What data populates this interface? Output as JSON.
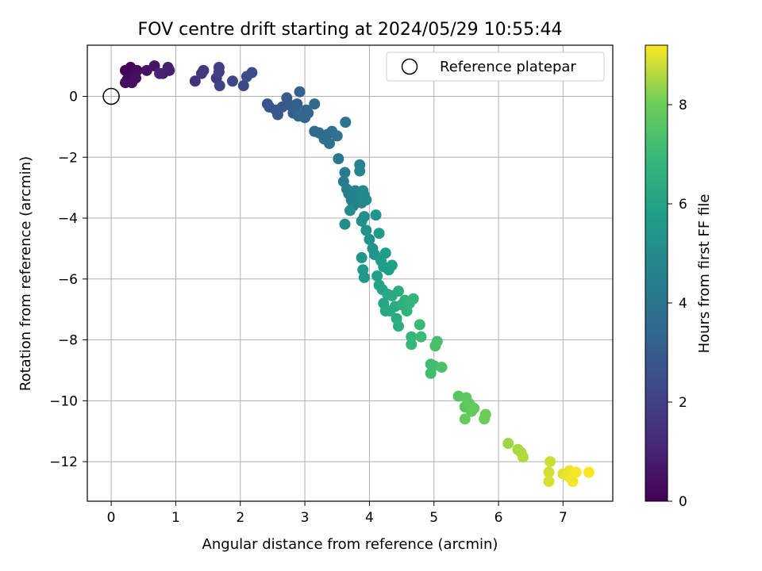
{
  "chart_data": {
    "type": "scatter",
    "title": "FOV centre drift starting at 2024/05/29 10:55:44",
    "xlabel": "Angular distance from reference (arcmin)",
    "ylabel": "Rotation from reference (arcmin)",
    "xlim": [
      -0.37,
      7.77
    ],
    "ylim": [
      -13.3,
      1.68
    ],
    "xticks": [
      0,
      1,
      2,
      3,
      4,
      5,
      6,
      7
    ],
    "yticks": [
      0,
      -2,
      -4,
      -6,
      -8,
      -10,
      -12
    ],
    "grid": true,
    "legend": {
      "position": "top-right",
      "entries": [
        "Reference platepar"
      ]
    },
    "reference_point": {
      "x": 0,
      "y": 0
    },
    "colorbar": {
      "label": "Hours from first FF file",
      "min": 0,
      "max": 9.2,
      "ticks": [
        0,
        2,
        4,
        6,
        8
      ],
      "colormap": "viridis"
    },
    "points": [
      [
        0.22,
        0.85,
        0.1
      ],
      [
        0.3,
        0.95,
        0.15
      ],
      [
        0.35,
        0.75,
        0.2
      ],
      [
        0.25,
        0.55,
        0.25
      ],
      [
        0.4,
        0.85,
        0.3
      ],
      [
        0.32,
        0.45,
        0.35
      ],
      [
        0.22,
        0.45,
        0.4
      ],
      [
        0.38,
        0.6,
        0.45
      ],
      [
        0.55,
        0.85,
        0.5
      ],
      [
        0.67,
        1.0,
        0.6
      ],
      [
        0.8,
        0.75,
        0.7
      ],
      [
        0.9,
        0.85,
        0.8
      ],
      [
        0.88,
        0.95,
        0.9
      ],
      [
        0.75,
        0.75,
        1.0
      ],
      [
        1.3,
        0.5,
        1.5
      ],
      [
        1.4,
        0.75,
        1.6
      ],
      [
        1.43,
        0.85,
        1.7
      ],
      [
        1.63,
        0.6,
        1.8
      ],
      [
        1.67,
        0.95,
        1.9
      ],
      [
        1.67,
        0.8,
        2.0
      ],
      [
        1.68,
        0.35,
        2.1
      ],
      [
        1.88,
        0.5,
        2.2
      ],
      [
        2.05,
        0.35,
        2.3
      ],
      [
        2.1,
        0.65,
        2.4
      ],
      [
        2.18,
        0.78,
        2.5
      ],
      [
        2.42,
        -0.25,
        2.7
      ],
      [
        2.45,
        -0.35,
        2.75
      ],
      [
        2.55,
        -0.45,
        2.8
      ],
      [
        2.58,
        -0.6,
        2.85
      ],
      [
        2.65,
        -0.35,
        2.9
      ],
      [
        2.72,
        -0.05,
        2.95
      ],
      [
        2.78,
        -0.3,
        3.0
      ],
      [
        2.82,
        -0.55,
        3.05
      ],
      [
        2.85,
        -0.4,
        3.1
      ],
      [
        2.88,
        -0.25,
        3.15
      ],
      [
        2.92,
        0.15,
        3.2
      ],
      [
        2.95,
        -0.65,
        3.25
      ],
      [
        3.0,
        -0.7,
        3.3
      ],
      [
        3.02,
        -0.45,
        3.35
      ],
      [
        3.05,
        -0.55,
        3.4
      ],
      [
        3.15,
        -0.25,
        3.45
      ],
      [
        2.9,
        -0.65,
        3.5
      ],
      [
        3.15,
        -1.15,
        3.6
      ],
      [
        3.22,
        -1.2,
        3.65
      ],
      [
        3.3,
        -1.4,
        3.7
      ],
      [
        3.35,
        -1.25,
        3.75
      ],
      [
        3.38,
        -1.55,
        3.8
      ],
      [
        3.42,
        -1.15,
        3.85
      ],
      [
        3.5,
        -1.3,
        3.9
      ],
      [
        3.63,
        -0.85,
        3.95
      ],
      [
        3.52,
        -2.05,
        4.1
      ],
      [
        3.6,
        -2.8,
        4.3
      ],
      [
        3.62,
        -2.5,
        4.35
      ],
      [
        3.65,
        -3.05,
        4.4
      ],
      [
        3.68,
        -3.2,
        4.45
      ],
      [
        3.72,
        -3.4,
        4.5
      ],
      [
        3.75,
        -3.6,
        4.55
      ],
      [
        3.78,
        -3.1,
        4.6
      ],
      [
        3.82,
        -3.3,
        4.65
      ],
      [
        3.85,
        -2.25,
        4.7
      ],
      [
        3.85,
        -2.45,
        4.75
      ],
      [
        3.88,
        -3.5,
        4.8
      ],
      [
        3.9,
        -3.1,
        4.85
      ],
      [
        3.92,
        -3.25,
        4.9
      ],
      [
        3.95,
        -3.4,
        4.95
      ],
      [
        3.7,
        -3.75,
        5.0
      ],
      [
        3.62,
        -4.2,
        5.05
      ],
      [
        3.88,
        -4.1,
        5.1
      ],
      [
        3.92,
        -3.95,
        5.15
      ],
      [
        3.95,
        -4.4,
        5.2
      ],
      [
        4.0,
        -4.7,
        5.25
      ],
      [
        4.05,
        -5.0,
        5.3
      ],
      [
        4.08,
        -5.2,
        5.35
      ],
      [
        4.1,
        -3.9,
        5.4
      ],
      [
        3.88,
        -5.3,
        5.45
      ],
      [
        3.9,
        -5.7,
        5.5
      ],
      [
        3.92,
        -5.95,
        5.55
      ],
      [
        4.15,
        -4.5,
        5.6
      ],
      [
        4.18,
        -5.4,
        5.65
      ],
      [
        4.22,
        -5.6,
        5.7
      ],
      [
        4.25,
        -5.15,
        5.75
      ],
      [
        4.3,
        -5.7,
        5.8
      ],
      [
        4.35,
        -5.55,
        5.85
      ],
      [
        4.12,
        -5.9,
        5.9
      ],
      [
        4.15,
        -6.2,
        6.0
      ],
      [
        4.2,
        -6.35,
        6.05
      ],
      [
        4.22,
        -6.8,
        6.1
      ],
      [
        4.25,
        -7.05,
        6.15
      ],
      [
        4.28,
        -6.5,
        6.2
      ],
      [
        4.32,
        -7.05,
        6.25
      ],
      [
        4.35,
        -6.55,
        6.3
      ],
      [
        4.4,
        -6.9,
        6.35
      ],
      [
        4.42,
        -7.3,
        6.4
      ],
      [
        4.45,
        -6.4,
        6.45
      ],
      [
        4.45,
        -7.55,
        6.5
      ],
      [
        4.5,
        -6.85,
        6.55
      ],
      [
        4.55,
        -6.7,
        6.6
      ],
      [
        4.58,
        -7.05,
        6.65
      ],
      [
        4.62,
        -6.8,
        6.7
      ],
      [
        4.68,
        -6.65,
        6.75
      ],
      [
        4.65,
        -7.9,
        6.85
      ],
      [
        4.65,
        -8.15,
        6.9
      ],
      [
        4.78,
        -7.5,
        7.0
      ],
      [
        4.8,
        -7.9,
        7.05
      ],
      [
        4.95,
        -8.8,
        7.1
      ],
      [
        4.95,
        -9.1,
        7.15
      ],
      [
        5.0,
        -8.85,
        7.2
      ],
      [
        5.05,
        -8.05,
        7.25
      ],
      [
        5.02,
        -8.2,
        7.3
      ],
      [
        5.12,
        -8.9,
        7.35
      ],
      [
        5.38,
        -9.85,
        7.6
      ],
      [
        5.48,
        -10.2,
        7.65
      ],
      [
        5.5,
        -9.9,
        7.7
      ],
      [
        5.55,
        -10.1,
        7.75
      ],
      [
        5.58,
        -10.35,
        7.8
      ],
      [
        5.62,
        -10.25,
        7.85
      ],
      [
        5.48,
        -10.6,
        7.9
      ],
      [
        5.78,
        -10.6,
        7.95
      ],
      [
        5.8,
        -10.45,
        8.0
      ],
      [
        6.15,
        -11.4,
        8.4
      ],
      [
        6.3,
        -11.6,
        8.5
      ],
      [
        6.35,
        -11.7,
        8.55
      ],
      [
        6.38,
        -11.85,
        8.6
      ],
      [
        6.8,
        -12.0,
        8.8
      ],
      [
        6.78,
        -12.35,
        8.85
      ],
      [
        6.78,
        -12.65,
        8.9
      ],
      [
        7.0,
        -12.4,
        8.95
      ],
      [
        7.05,
        -12.45,
        9.0
      ],
      [
        7.1,
        -12.3,
        9.05
      ],
      [
        7.12,
        -12.55,
        9.1
      ],
      [
        7.15,
        -12.65,
        9.12
      ],
      [
        7.2,
        -12.35,
        9.15
      ],
      [
        7.4,
        -12.35,
        9.18
      ]
    ]
  }
}
